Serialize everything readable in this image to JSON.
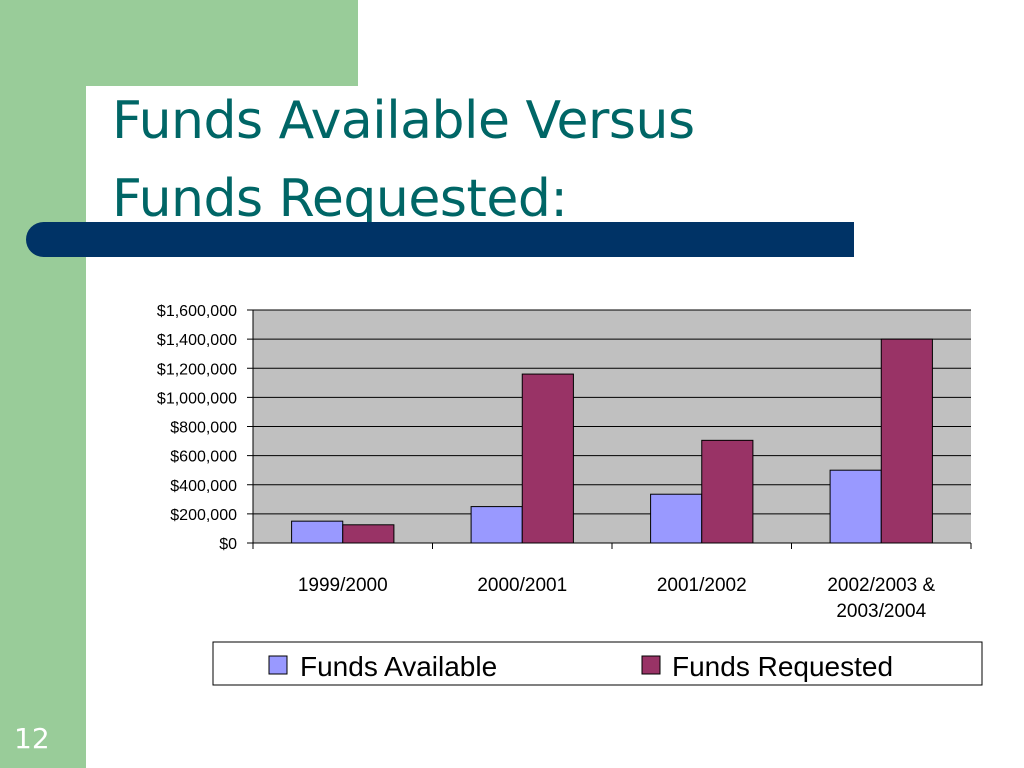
{
  "slide": {
    "title_line1": "Funds Available Versus",
    "title_line2": "Funds Requested:",
    "number": "12"
  },
  "colors": {
    "side_band": "#99cc99",
    "title_text": "#006666",
    "rule_bar": "#003366",
    "plot_background": "#c0c0c0",
    "available": "#9999ff",
    "requested": "#993366"
  },
  "chart_data": {
    "type": "bar",
    "categories": [
      [
        "1999/2000"
      ],
      [
        "2000/2001"
      ],
      [
        "2001/2002"
      ],
      [
        "2002/2003 &",
        "2003/2004"
      ]
    ],
    "series": [
      {
        "name": "Funds Available",
        "values": [
          150000,
          250000,
          335000,
          500000
        ]
      },
      {
        "name": "Funds Requested",
        "values": [
          125000,
          1160000,
          705000,
          1400000
        ]
      }
    ],
    "ylim": [
      0,
      1600000
    ],
    "y_ticks": [
      0,
      200000,
      400000,
      600000,
      800000,
      1000000,
      1200000,
      1400000,
      1600000
    ],
    "y_tick_labels": [
      "$0",
      "$200,000",
      "$400,000",
      "$600,000",
      "$800,000",
      "$1,000,000",
      "$1,200,000",
      "$1,400,000",
      "$1,600,000"
    ],
    "grid": true,
    "legend_position": "bottom"
  }
}
